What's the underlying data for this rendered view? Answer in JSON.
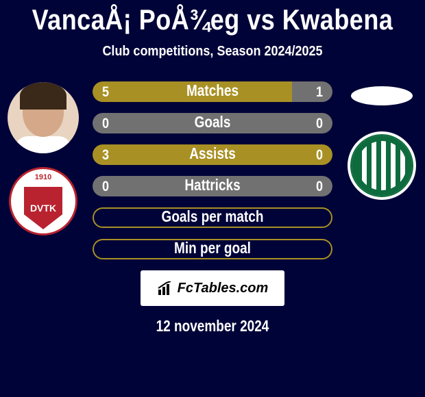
{
  "title": "VancaÅ¡ PoÅ¾eg vs Kwabena",
  "subtitle": "Club competitions, Season 2024/2025",
  "date": "12 november 2024",
  "watermark": "FcTables.com",
  "left_badge_year": "1910",
  "left_badge_text": "DVTK",
  "colors": {
    "background": "#000338",
    "bar_fill": "#a89024",
    "bar_empty": "#717171",
    "outline_color": "#a89024",
    "text": "#ffffff"
  },
  "bars": [
    {
      "label": "Matches",
      "left_val": "5",
      "right_val": "1",
      "type": "split",
      "left_pct": 83,
      "right_pct": 17,
      "left_color": "#a89024",
      "right_color": "#717171"
    },
    {
      "label": "Goals",
      "left_val": "0",
      "right_val": "0",
      "type": "full",
      "bg_color": "#717171"
    },
    {
      "label": "Assists",
      "left_val": "3",
      "right_val": "0",
      "type": "split",
      "left_pct": 100,
      "right_pct": 0,
      "left_color": "#a89024",
      "right_color": "#717171"
    },
    {
      "label": "Hattricks",
      "left_val": "0",
      "right_val": "0",
      "type": "full",
      "bg_color": "#717171"
    },
    {
      "label": "Goals per match",
      "type": "outline",
      "outline_color": "#a89024"
    },
    {
      "label": "Min per goal",
      "type": "outline",
      "outline_color": "#a89024"
    }
  ]
}
